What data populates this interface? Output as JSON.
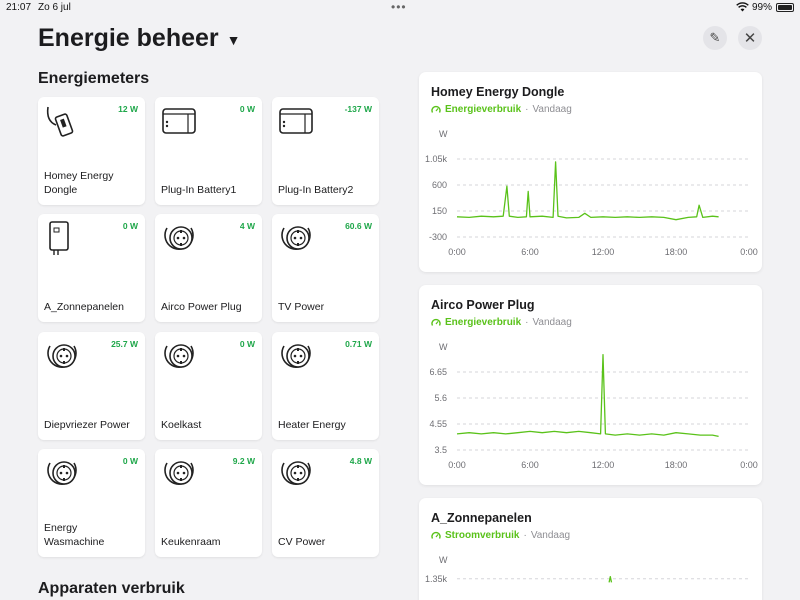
{
  "status": {
    "time": "21:07",
    "date": "Zo 6 jul",
    "battery": "99%"
  },
  "header": {
    "title": "Energie beheer"
  },
  "sections": {
    "meters": "Energiemeters",
    "usage": "Apparaten verbruik"
  },
  "tiles": [
    {
      "name": "Homey Energy Dongle",
      "watt": "12 W",
      "icon": "dongle"
    },
    {
      "name": "Plug-In Battery1",
      "watt": "0 W",
      "icon": "battery"
    },
    {
      "name": "Plug-In Battery2",
      "watt": "-137 W",
      "icon": "battery"
    },
    {
      "name": "A_Zonnepanelen",
      "watt": "0 W",
      "icon": "inverter"
    },
    {
      "name": "Airco Power Plug",
      "watt": "4 W",
      "icon": "plug"
    },
    {
      "name": "TV Power",
      "watt": "60.6 W",
      "icon": "plug"
    },
    {
      "name": "Diepvriezer Power",
      "watt": "25.7 W",
      "icon": "plug"
    },
    {
      "name": "Koelkast",
      "watt": "0 W",
      "icon": "plug"
    },
    {
      "name": "Heater Energy",
      "watt": "0.71 W",
      "icon": "plug"
    },
    {
      "name": "Energy Wasmachine",
      "watt": "0 W",
      "icon": "plug"
    },
    {
      "name": "Keukenraam",
      "watt": "9.2 W",
      "icon": "plug"
    },
    {
      "name": "CV Power",
      "watt": "4.8 W",
      "icon": "plug"
    }
  ],
  "chart_data": [
    {
      "type": "line",
      "title": "Homey Energy Dongle",
      "metric": "Energieverbruik",
      "period": "Vandaag",
      "ylabel": "W",
      "yticks": [
        "1.05k",
        "600",
        "150",
        "-300"
      ],
      "ylim": [
        -300,
        1050
      ],
      "xticks": [
        "0:00",
        "6:00",
        "12:00",
        "18:00",
        "0:00"
      ],
      "xlim": [
        0,
        24
      ],
      "series": [
        {
          "x": [
            0,
            1,
            2,
            3,
            3.8,
            4.1,
            4.3,
            5,
            5.7,
            5.85,
            6,
            7,
            7.9,
            8.1,
            8.3,
            9,
            10,
            10.5,
            11,
            12,
            13,
            14,
            15,
            16,
            17,
            18,
            19,
            19.7,
            19.9,
            20.2,
            21,
            21.5
          ],
          "y": [
            50,
            40,
            60,
            50,
            60,
            580,
            60,
            40,
            50,
            490,
            50,
            60,
            40,
            1000,
            60,
            30,
            40,
            110,
            40,
            50,
            40,
            50,
            40,
            50,
            40,
            0,
            40,
            50,
            250,
            40,
            60,
            50
          ]
        }
      ],
      "color": "#5ac21a"
    },
    {
      "type": "line",
      "title": "Airco Power Plug",
      "metric": "Energieverbruik",
      "period": "Vandaag",
      "ylabel": "W",
      "yticks": [
        "6.65",
        "5.6",
        "4.55",
        "3.5"
      ],
      "ylim": [
        3.5,
        7.7
      ],
      "xticks": [
        "0:00",
        "6:00",
        "12:00",
        "18:00",
        "0:00"
      ],
      "xlim": [
        0,
        24
      ],
      "series": [
        {
          "x": [
            0,
            1,
            2,
            3,
            4,
            5,
            6,
            7,
            8,
            9,
            10,
            11,
            11.8,
            12,
            12.2,
            13,
            14,
            15,
            16,
            17,
            18,
            19,
            20,
            21,
            21.5
          ],
          "y": [
            4.15,
            4.2,
            4.15,
            4.2,
            4.15,
            4.2,
            4.25,
            4.2,
            4.25,
            4.2,
            4.25,
            4.2,
            4.15,
            7.35,
            4.15,
            4.1,
            4.15,
            4.1,
            4.15,
            4.1,
            4.2,
            4.15,
            4.1,
            4.1,
            4.05
          ]
        }
      ],
      "color": "#5ac21a"
    },
    {
      "type": "line",
      "title": "A_Zonnepanelen",
      "metric": "Stroomverbruik",
      "period": "Vandaag",
      "ylabel": "W",
      "yticks": [
        "1.35k"
      ],
      "ylim": [
        0,
        1500
      ],
      "xlim": [
        0,
        24
      ],
      "series": [
        {
          "x": [
            12.5,
            12.6,
            12.7
          ],
          "y": [
            1100,
            1500,
            1100
          ]
        }
      ],
      "color": "#5ac21a"
    }
  ]
}
